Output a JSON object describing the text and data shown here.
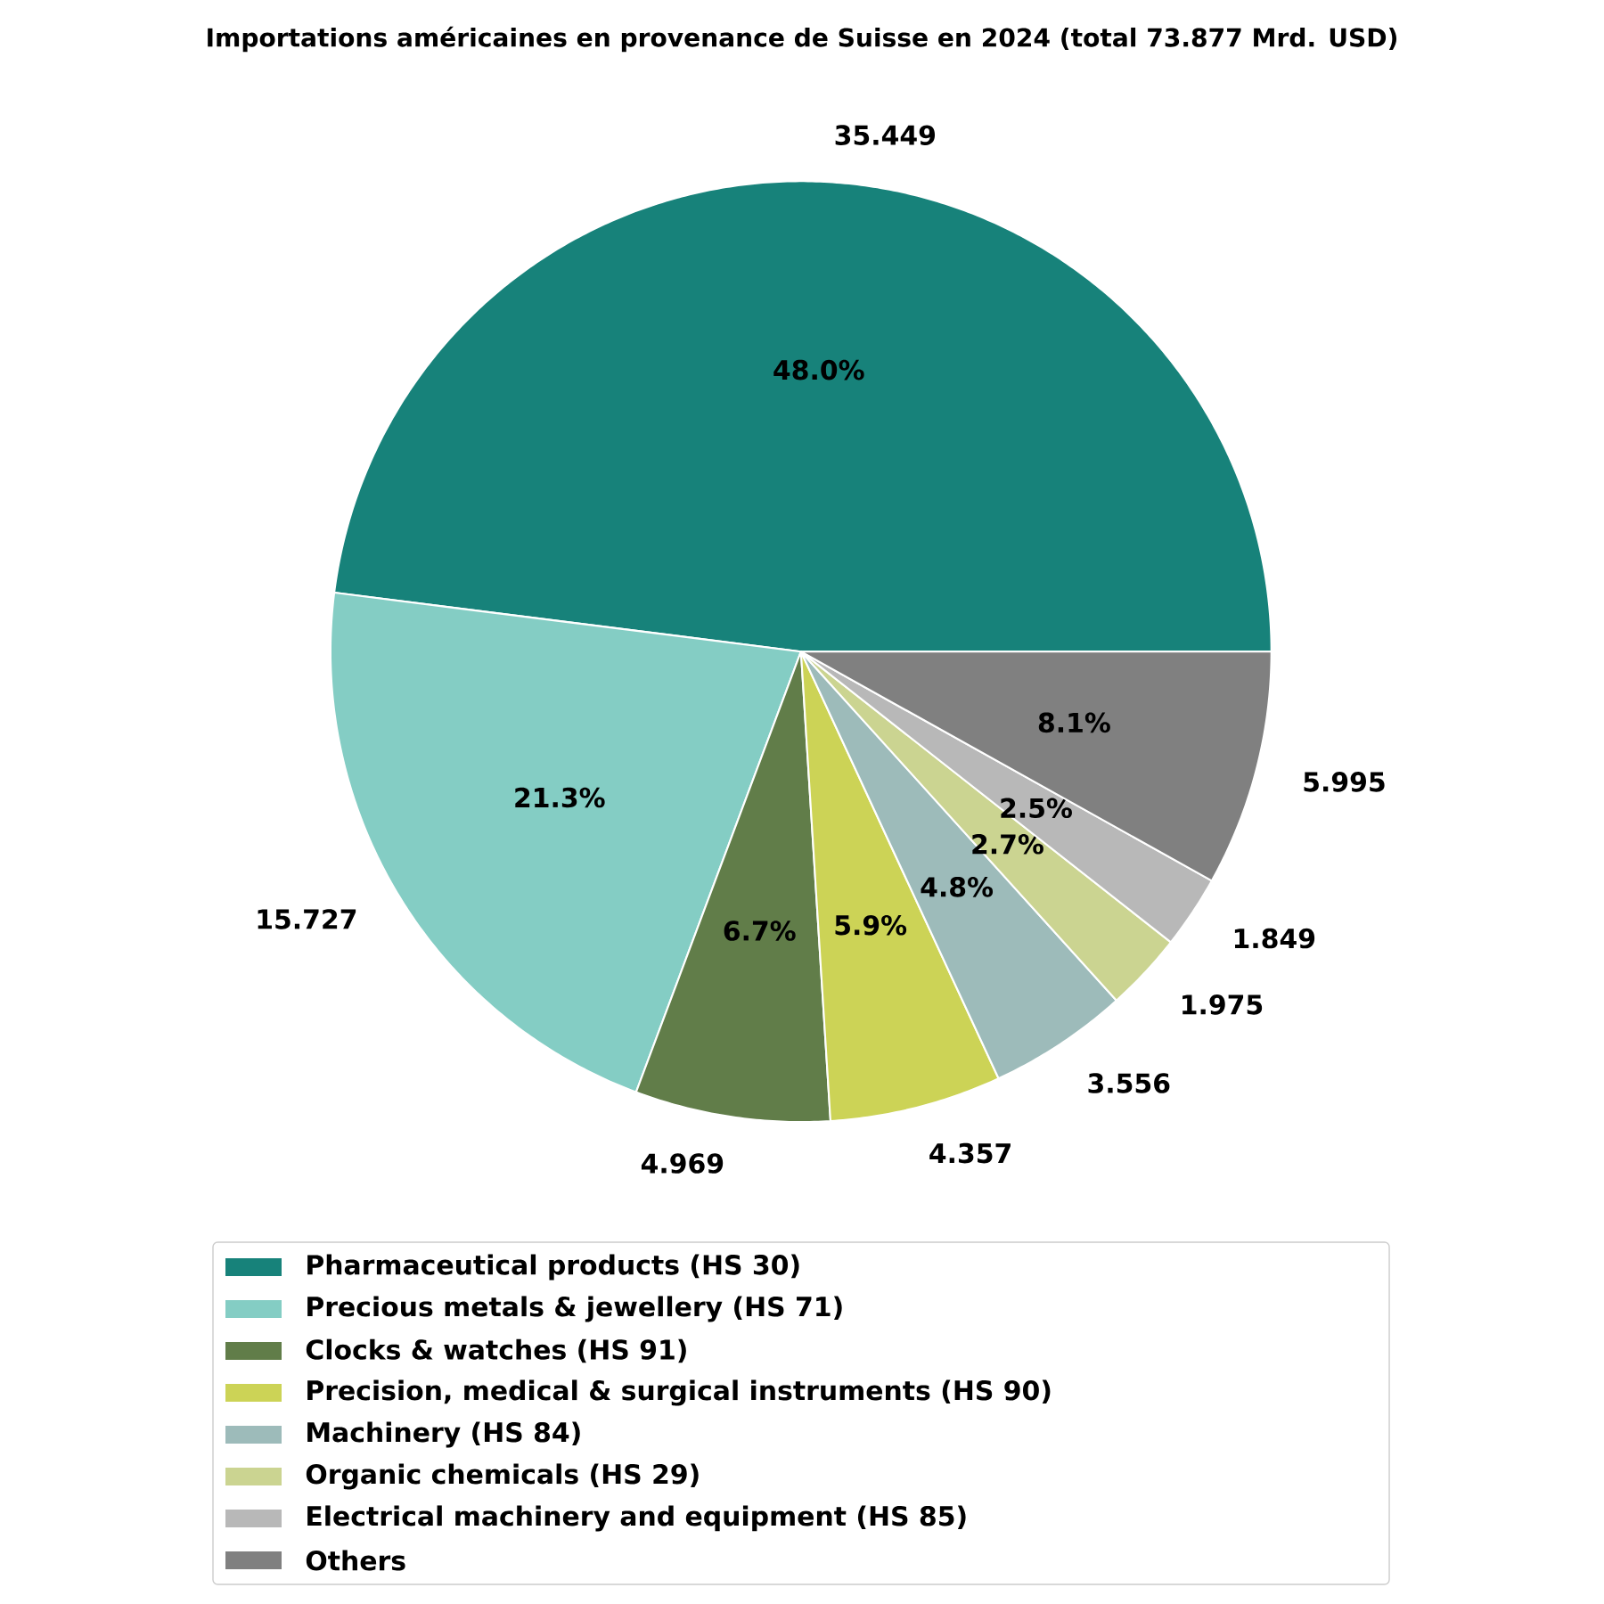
{
  "chart_data": {
    "type": "pie",
    "title": "Importations américaines en provenance de Suisse en 2024 (total 73.877 Mrd. USD)",
    "categories": [
      "Pharmaceutical products (HS 30)",
      "Precious metals & jewellery (HS 71)",
      "Clocks & watches (HS 91)",
      "Precision, medical & surgical instruments (HS 90)",
      "Machinery (HS 84)",
      "Organic chemicals (HS 29)",
      "Electrical machinery and equipment (HS 85)",
      "Others"
    ],
    "values": [
      48.0,
      21.3,
      6.7,
      5.9,
      4.8,
      2.7,
      2.5,
      8.1
    ],
    "annotations": [
      "35.449",
      "15.727",
      "4.969",
      "4.357",
      "3.556",
      "1.975",
      "1.849",
      "5.995"
    ],
    "colors": [
      "#17827a",
      "#84cdc4",
      "#617d49",
      "#ccd356",
      "#9dbbba",
      "#cbd491",
      "#b8b8b8",
      "#808080"
    ],
    "value_labels": [
      "48.0%",
      "21.3%",
      "6.7%",
      "5.9%",
      "4.8%",
      "2.7%",
      "2.5%",
      "8.1%"
    ],
    "legend": "bottom"
  }
}
